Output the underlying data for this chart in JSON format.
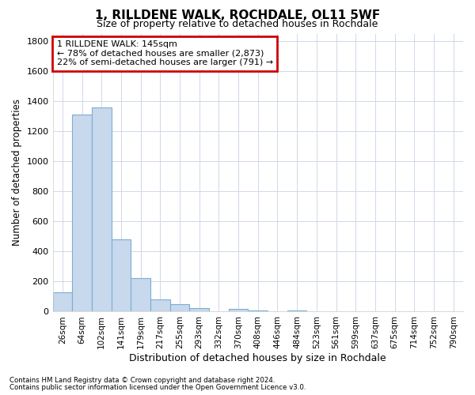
{
  "title": "1, RILLDENE WALK, ROCHDALE, OL11 5WF",
  "subtitle": "Size of property relative to detached houses in Rochdale",
  "xlabel": "Distribution of detached houses by size in Rochdale",
  "ylabel": "Number of detached properties",
  "bar_labels": [
    "26sqm",
    "64sqm",
    "102sqm",
    "141sqm",
    "179sqm",
    "217sqm",
    "255sqm",
    "293sqm",
    "332sqm",
    "370sqm",
    "408sqm",
    "446sqm",
    "484sqm",
    "523sqm",
    "561sqm",
    "599sqm",
    "637sqm",
    "675sqm",
    "714sqm",
    "752sqm",
    "790sqm"
  ],
  "bar_values": [
    130,
    1310,
    1360,
    480,
    225,
    80,
    50,
    25,
    0,
    20,
    10,
    0,
    10,
    0,
    0,
    0,
    0,
    0,
    0,
    0,
    0
  ],
  "bar_color": "#c8d8ed",
  "bar_edge_color": "#7aafd4",
  "ylim": [
    0,
    1850
  ],
  "yticks": [
    0,
    200,
    400,
    600,
    800,
    1000,
    1200,
    1400,
    1600,
    1800
  ],
  "property_bar_index": 3,
  "annotation_text_line1": "1 RILLDENE WALK: 145sqm",
  "annotation_text_line2": "← 78% of detached houses are smaller (2,873)",
  "annotation_text_line3": "22% of semi-detached houses are larger (791) →",
  "annotation_box_color": "#cc0000",
  "footnote1": "Contains HM Land Registry data © Crown copyright and database right 2024.",
  "footnote2": "Contains public sector information licensed under the Open Government Licence v3.0.",
  "bg_color": "#ffffff",
  "plot_bg_color": "#ffffff",
  "grid_color": "#d0d8e8",
  "title_fontsize": 11,
  "subtitle_fontsize": 9
}
